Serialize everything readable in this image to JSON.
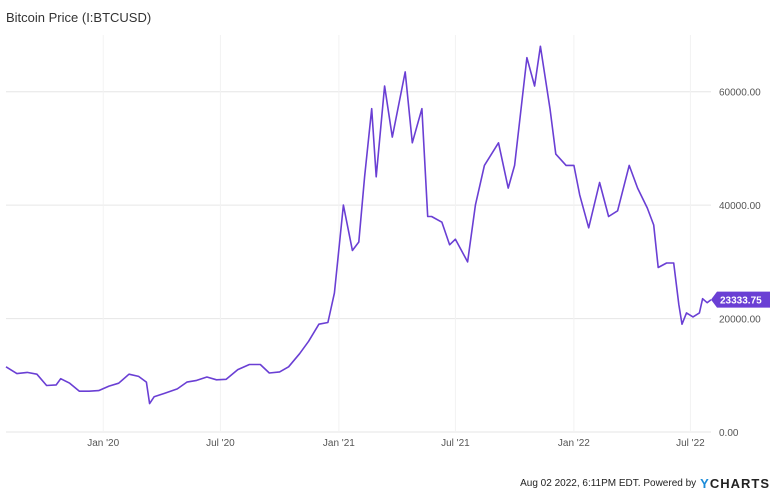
{
  "title": "Bitcoin Price (I:BTCUSD)",
  "footer": {
    "timestamp": "Aug 02 2022, 6:11PM EDT.",
    "powered_by": "Powered by",
    "brand_y": "Y",
    "brand_rest": "CHARTS"
  },
  "colors": {
    "line": "#6a3fd4",
    "grid": "#e6e6e6",
    "badge": "#6a3fd4"
  },
  "chart_data": {
    "type": "line",
    "title": "Bitcoin Price (I:BTCUSD)",
    "xlabel": "",
    "ylabel": "",
    "ylim": [
      0,
      70000
    ],
    "xlim": [
      "2019-08-03",
      "2022-08-02"
    ],
    "grid": true,
    "yticks": [
      0,
      20000,
      40000,
      60000
    ],
    "ytick_labels": [
      "0.00",
      "20000.00",
      "40000.00",
      "60000.00"
    ],
    "xticks": [
      "2020-01-01",
      "2020-07-01",
      "2021-01-01",
      "2021-07-01",
      "2022-01-01",
      "2022-07-01"
    ],
    "xtick_labels": [
      "Jan '20",
      "Jul '20",
      "Jan '21",
      "Jul '21",
      "Jan '22",
      "Jul '22"
    ],
    "last_value_label": "23333.75",
    "series": [
      {
        "x": [
          "2019-08-03",
          "2019-08-20",
          "2019-09-05",
          "2019-09-20",
          "2019-10-05",
          "2019-10-20",
          "2019-10-27",
          "2019-11-10",
          "2019-11-25",
          "2019-12-10",
          "2019-12-25",
          "2020-01-10",
          "2020-01-25",
          "2020-02-10",
          "2020-02-25",
          "2020-03-08",
          "2020-03-13",
          "2020-03-20",
          "2020-04-05",
          "2020-04-25",
          "2020-05-10",
          "2020-05-25",
          "2020-06-10",
          "2020-06-25",
          "2020-07-10",
          "2020-07-28",
          "2020-08-15",
          "2020-09-01",
          "2020-09-15",
          "2020-10-01",
          "2020-10-15",
          "2020-11-01",
          "2020-11-15",
          "2020-12-01",
          "2020-12-15",
          "2020-12-25",
          "2021-01-08",
          "2021-01-15",
          "2021-01-22",
          "2021-02-01",
          "2021-02-10",
          "2021-02-21",
          "2021-02-28",
          "2021-03-13",
          "2021-03-25",
          "2021-04-14",
          "2021-04-25",
          "2021-05-10",
          "2021-05-19",
          "2021-05-25",
          "2021-06-10",
          "2021-06-22",
          "2021-07-01",
          "2021-07-20",
          "2021-08-01",
          "2021-08-15",
          "2021-09-06",
          "2021-09-21",
          "2021-10-01",
          "2021-10-20",
          "2021-11-01",
          "2021-11-10",
          "2021-11-25",
          "2021-12-04",
          "2021-12-20",
          "2022-01-01",
          "2022-01-10",
          "2022-01-24",
          "2022-02-10",
          "2022-02-24",
          "2022-03-10",
          "2022-03-28",
          "2022-04-10",
          "2022-04-25",
          "2022-05-05",
          "2022-05-12",
          "2022-05-25",
          "2022-06-05",
          "2022-06-13",
          "2022-06-18",
          "2022-06-25",
          "2022-07-05",
          "2022-07-15",
          "2022-07-20",
          "2022-07-27",
          "2022-08-02"
        ],
        "values": [
          11500,
          10300,
          10500,
          10200,
          8200,
          8300,
          9400,
          8600,
          7200,
          7200,
          7300,
          8100,
          8600,
          10200,
          9800,
          8800,
          5000,
          6200,
          6800,
          7600,
          8800,
          9100,
          9700,
          9200,
          9300,
          11000,
          11900,
          11900,
          10400,
          10600,
          11500,
          13800,
          16000,
          19000,
          19300,
          24500,
          40000,
          36000,
          32000,
          33500,
          45000,
          57000,
          45000,
          61000,
          52000,
          63500,
          51000,
          57000,
          38000,
          38000,
          37000,
          33000,
          34000,
          30000,
          40000,
          47000,
          51000,
          43000,
          47000,
          66000,
          61000,
          68000,
          57000,
          49000,
          47000,
          47000,
          41800,
          36000,
          44000,
          38000,
          39000,
          47000,
          43000,
          39500,
          36500,
          29000,
          29800,
          29800,
          22500,
          19000,
          21000,
          20300,
          21000,
          23500,
          22800,
          23333.75
        ]
      }
    ]
  }
}
